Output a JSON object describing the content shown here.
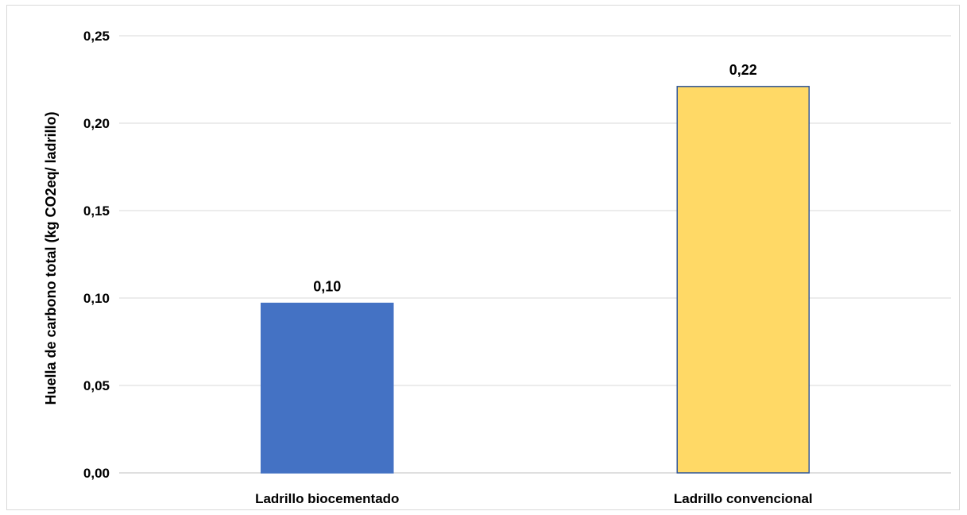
{
  "chart_data": {
    "type": "bar",
    "title": "",
    "xlabel": "",
    "ylabel": "Huella de carbono total (kg CO2eq/ ladrillo)",
    "categories": [
      "Ladrillo biocementado",
      "Ladrillo convencional"
    ],
    "values": [
      0.097,
      0.221
    ],
    "data_labels": [
      "0,10",
      "0,22"
    ],
    "bar_colors": [
      "#4472C4",
      "#FFD966"
    ],
    "bar_edge_colors": [
      "#4472C4",
      "#2F5597"
    ],
    "ylim": [
      0,
      0.25
    ],
    "yticks": [
      0,
      0.05,
      0.1,
      0.15,
      0.2,
      0.25
    ],
    "ytick_labels": [
      "0,00",
      "0,05",
      "0,10",
      "0,15",
      "0,20",
      "0,25"
    ],
    "grid": true,
    "legend": "none"
  }
}
